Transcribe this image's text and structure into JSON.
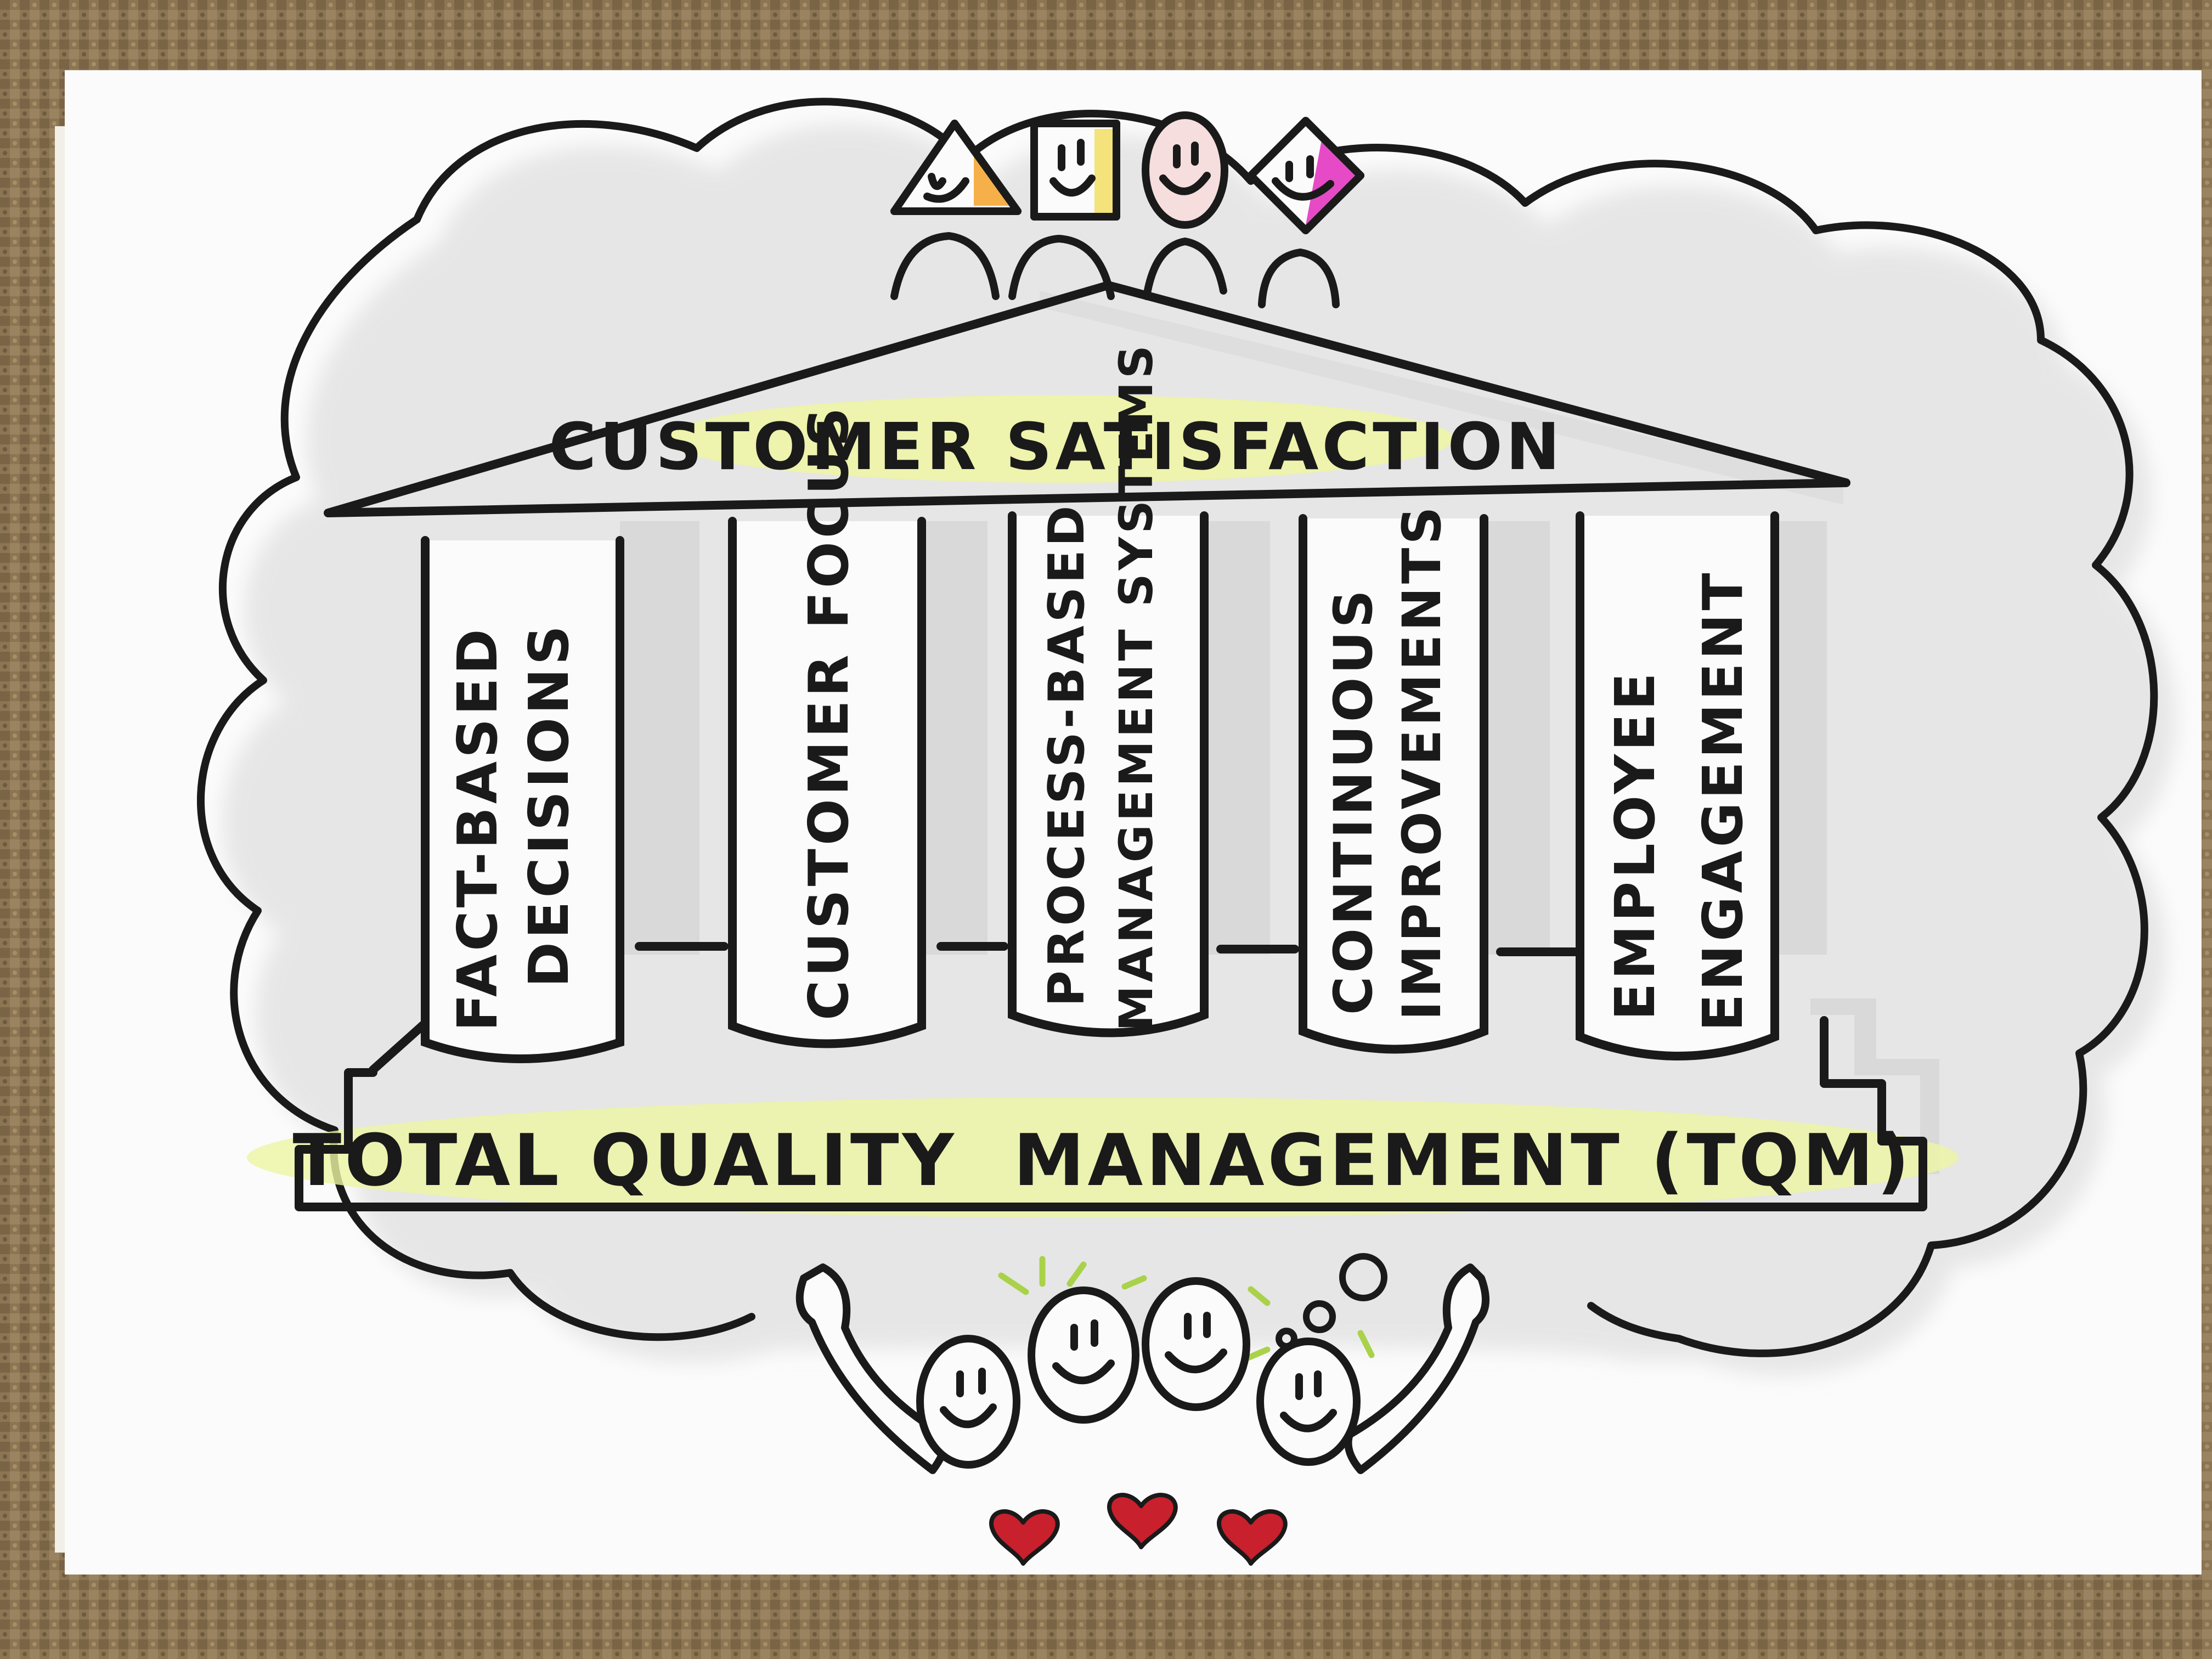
{
  "diagram": {
    "roof_label": "CUSTOMER SATISFACTION",
    "base_label": "TOTAL QUALITY  MANAGEMENT (TQM)",
    "pillars": [
      {
        "line1": "FACT-BASED",
        "line2": "DECISIONS"
      },
      {
        "line1": "CUSTOMER FOCUS",
        "line2": ""
      },
      {
        "line1": "PROCESS-BASED",
        "line2": "MANAGEMENT SYSTEMS"
      },
      {
        "line1": "CONTINUOUS",
        "line2": "IMPROVEMENTS"
      },
      {
        "line1": "EMPLOYEE",
        "line2": "ENGAGEMENT"
      }
    ]
  },
  "colors": {
    "background": "#8c7552",
    "paper": "#fbfbfb",
    "ink": "#1a1a1a",
    "highlight": "#eef5a2",
    "orange_accent": "#f6b04a",
    "yellow_accent": "#f4e27a",
    "pink_accent": "#e64ac6",
    "face_pink": "#f6dede",
    "heart_red": "#c8202c",
    "spark_green": "#a9d24a",
    "shadow_gray": "#d6d6d6"
  },
  "icons": {
    "top_figures": [
      "triangle-head-person-icon",
      "square-head-person-icon",
      "oval-head-person-icon",
      "diamond-head-person-icon"
    ],
    "bottom": [
      "smiley-face-icon",
      "heart-icon",
      "waving-arm-icon",
      "thought-bubble-icon"
    ]
  }
}
